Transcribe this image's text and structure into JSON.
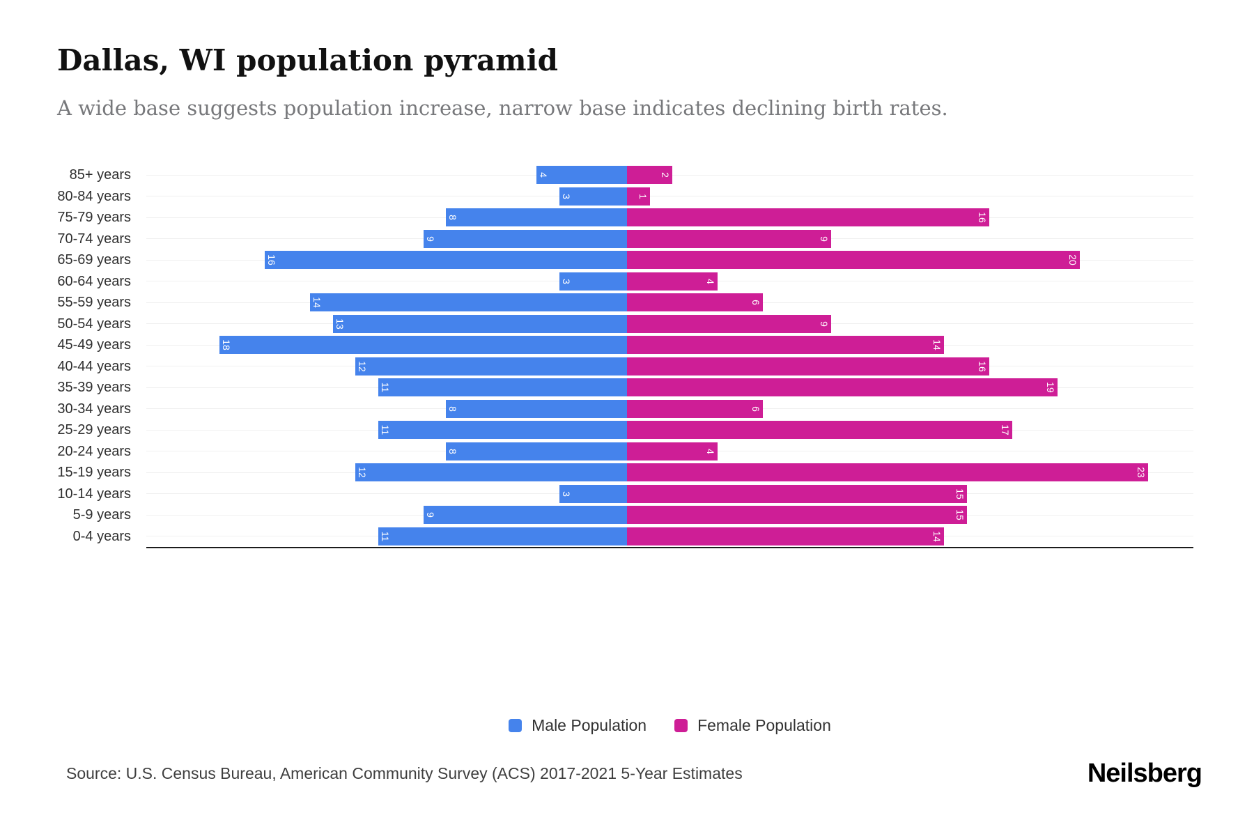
{
  "header": {
    "title": "Dallas, WI population pyramid",
    "subtitle": "A wide base suggests population increase, narrow base indicates declining birth rates."
  },
  "chart_data": {
    "type": "bar",
    "variant": "population-pyramid",
    "categories": [
      "85+ years",
      "80-84 years",
      "75-79 years",
      "70-74 years",
      "65-69 years",
      "60-64 years",
      "55-59 years",
      "50-54 years",
      "45-49 years",
      "40-44 years",
      "35-39 years",
      "30-34 years",
      "25-29 years",
      "20-24 years",
      "15-19 years",
      "10-14 years",
      "5-9 years",
      "0-4 years"
    ],
    "series": [
      {
        "name": "Male Population",
        "side": "left",
        "color": "#4583EC",
        "values": [
          4,
          3,
          8,
          9,
          16,
          3,
          14,
          13,
          18,
          12,
          11,
          8,
          11,
          8,
          12,
          3,
          9,
          11
        ]
      },
      {
        "name": "Female Population",
        "side": "right",
        "color": "#CE1E96",
        "values": [
          2,
          1,
          16,
          9,
          20,
          4,
          6,
          9,
          14,
          16,
          19,
          6,
          17,
          4,
          23,
          15,
          15,
          14
        ]
      }
    ],
    "value_labels": "inside-end, rotated 90deg, white",
    "grid": "light horizontal line per category row",
    "legend_position": "bottom-center",
    "axis_line": "bottom, dark"
  },
  "legend": {
    "male": "Male Population",
    "female": "Female Population"
  },
  "footer": {
    "source": "Source: U.S. Census Bureau, American Community Survey (ACS) 2017-2021 5-Year Estimates",
    "brand": "Neilsberg"
  },
  "colors": {
    "male": "#4583EC",
    "female": "#CE1E96",
    "gridline": "#f0f0f0",
    "axis_line": "#1c1c1c",
    "subtitle_text": "#77787b"
  }
}
